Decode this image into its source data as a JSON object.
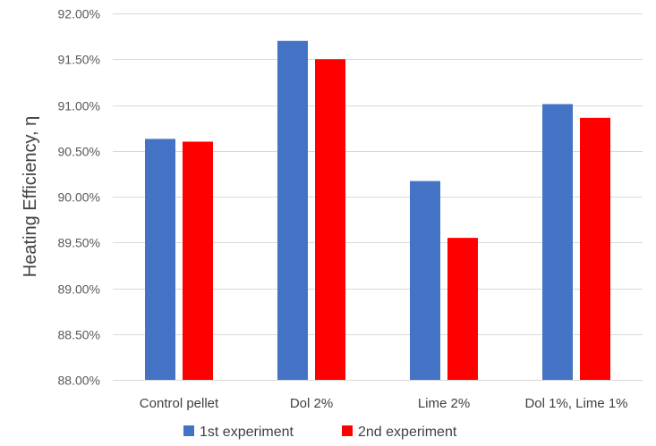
{
  "chart_data": {
    "type": "bar",
    "title": "",
    "xlabel": "",
    "ylabel": "Heating Efficiency, η",
    "categories": [
      "Control pellet",
      "Dol 2%",
      "Lime 2%",
      "Dol 1%, Lime 1%"
    ],
    "series": [
      {
        "name": "1st experiment",
        "color": "#4472C4",
        "values": [
          90.63,
          91.7,
          90.17,
          91.01
        ]
      },
      {
        "name": "2nd experiment",
        "color": "#FF0000",
        "values": [
          90.6,
          91.5,
          89.55,
          90.86
        ]
      }
    ],
    "ylim": [
      88.0,
      92.0
    ],
    "yticks": [
      88.0,
      88.5,
      89.0,
      89.5,
      90.0,
      90.5,
      91.0,
      91.5,
      92.0
    ],
    "ytick_labels": [
      "88.00%",
      "88.50%",
      "89.00%",
      "89.50%",
      "90.00%",
      "90.50%",
      "91.00%",
      "91.50%",
      "92.00%"
    ],
    "grid": true,
    "legend_position": "bottom"
  }
}
